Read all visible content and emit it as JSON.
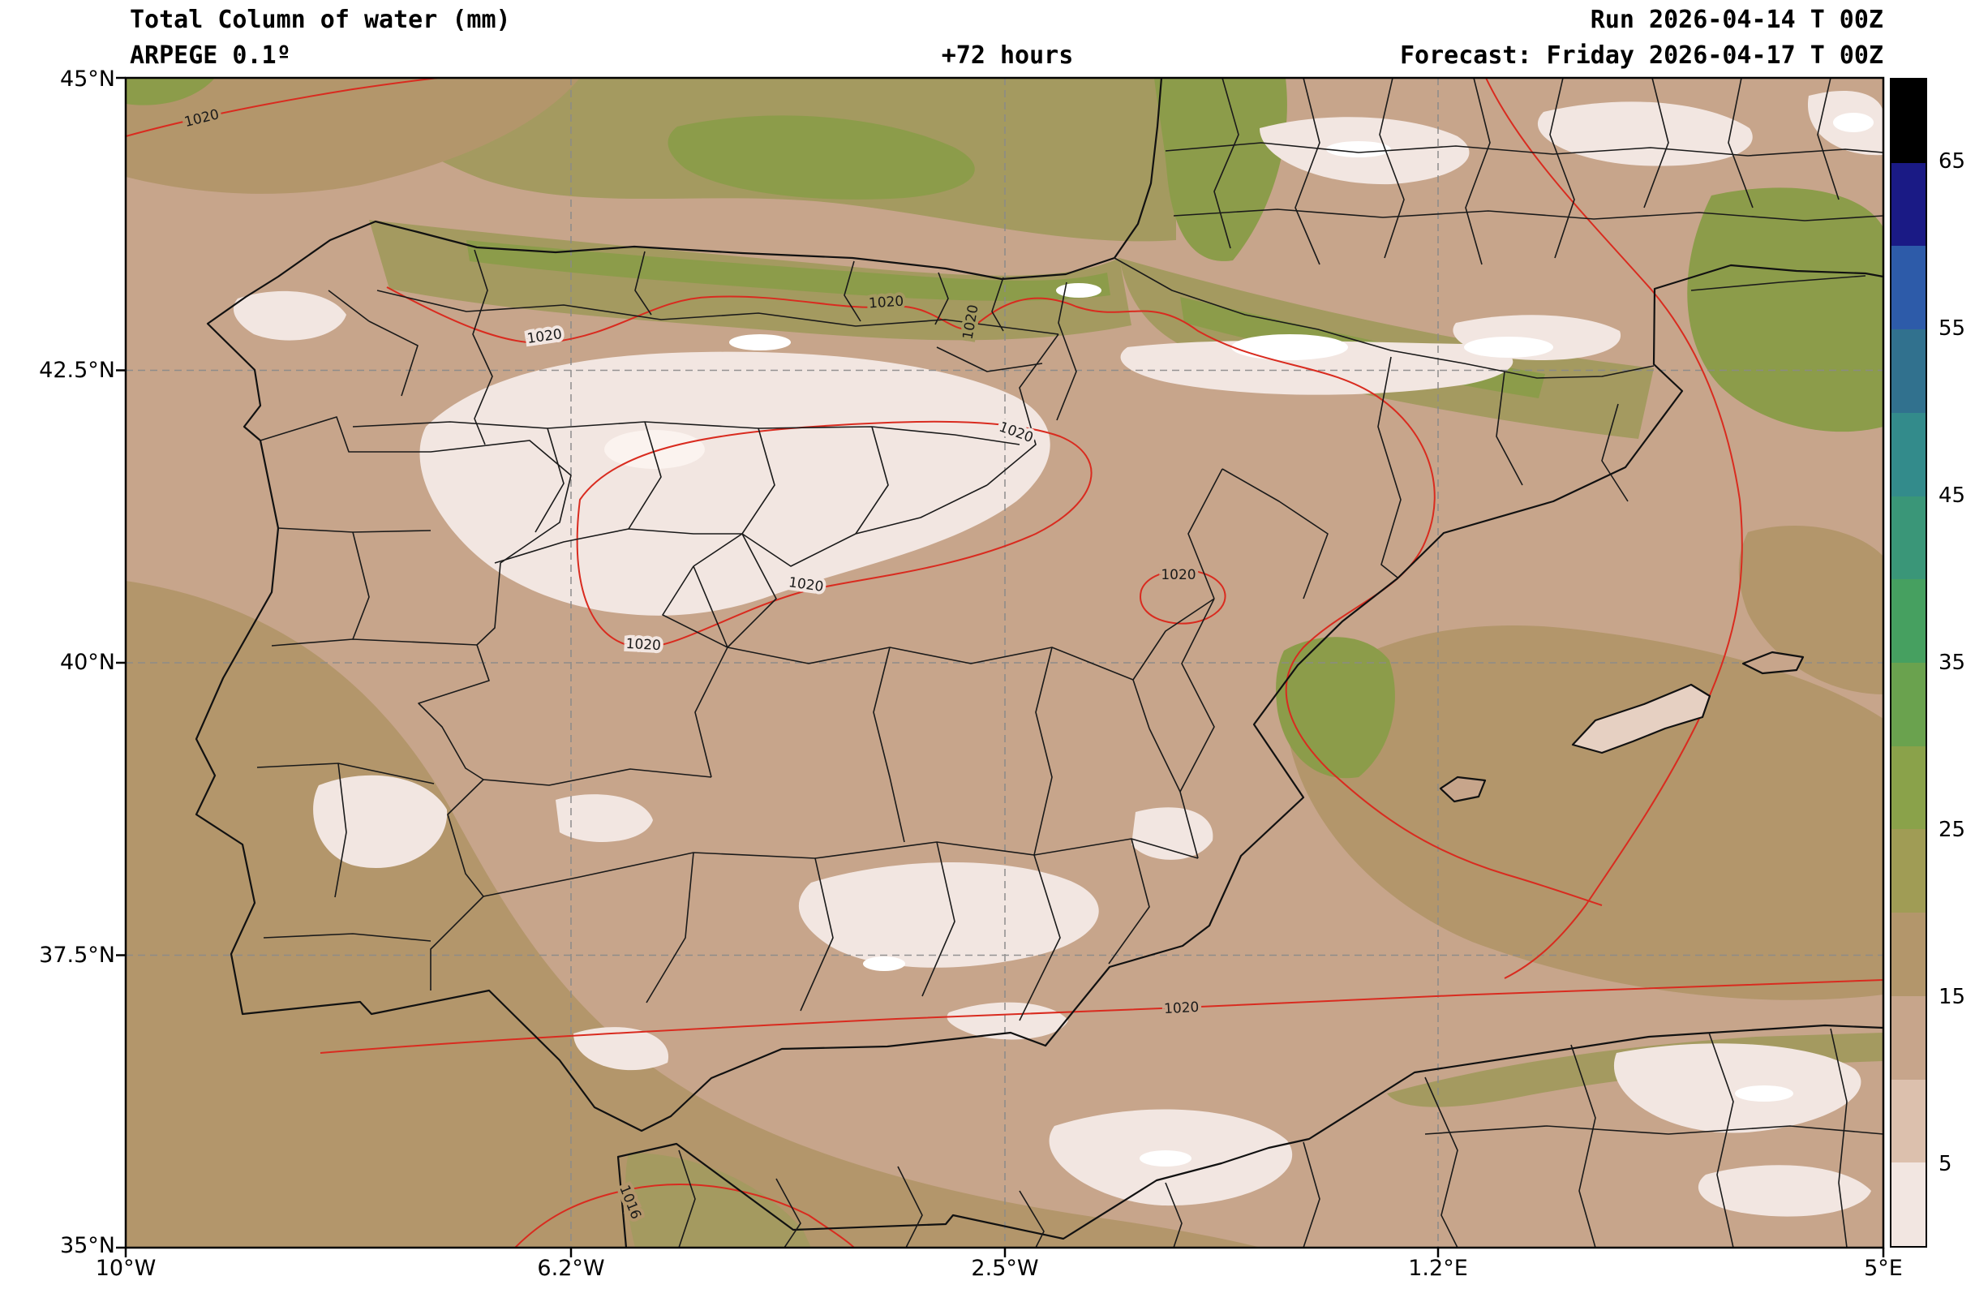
{
  "header": {
    "title": "Total Column of water (mm)",
    "model": "ARPEGE 0.1º",
    "lead_time": "+72 hours",
    "run": "Run 2026-04-14 T 00Z",
    "forecast": "Forecast: Friday 2026-04-17 T 00Z"
  },
  "axes": {
    "lat_ticks": [
      "45°N",
      "42.5°N",
      "40°N",
      "37.5°N",
      "35°N"
    ],
    "lon_ticks": [
      "10°W",
      "6.2°W",
      "2.5°W",
      "1.2°E",
      "5°E"
    ]
  },
  "colorbar": {
    "tick_labels": [
      "65",
      "55",
      "45",
      "35",
      "25",
      "15",
      "5"
    ],
    "tick_values": [
      65,
      55,
      45,
      35,
      25,
      15,
      5
    ],
    "value_range": [
      0,
      70
    ],
    "colors_top_to_bottom": [
      "#000000",
      "#1a1a85",
      "#2d5ba9",
      "#31718e",
      "#338b8b",
      "#3a9678",
      "#46a060",
      "#6aa24e",
      "#8aa24a",
      "#a09c55",
      "#b3966b",
      "#c7a58b",
      "#dcc0ad",
      "#f2e6e1"
    ]
  },
  "map": {
    "field_base_color": "#c7a58b",
    "labels": {
      "isobar_1020": "1020",
      "isobar_1016": "1016"
    },
    "contour_values_shown": [
      "1020",
      "1016"
    ]
  }
}
